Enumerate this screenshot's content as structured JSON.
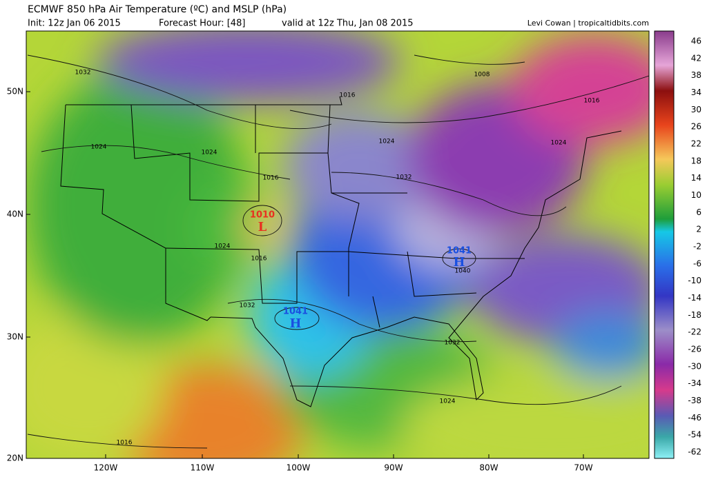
{
  "header": {
    "title": "ECMWF 850 hPa Air Temperature (ºC) and MSLP (hPa)",
    "init": "Init: 12z Jan 06 2015",
    "forecast_hour": "Forecast Hour: [48]",
    "valid": "valid at 12z Thu, Jan 08 2015",
    "credit": "Levi Cowan | tropicaltidbits.com"
  },
  "map": {
    "lat_labels": [
      "50N",
      "40N",
      "30N",
      "20N"
    ],
    "lon_labels": [
      "120W",
      "110W",
      "100W",
      "90W",
      "80W",
      "70W"
    ],
    "isobar_labels": [
      1032,
      1008,
      1016,
      1016,
      1024,
      1024,
      1024,
      1024,
      1016,
      1032,
      1024,
      1016,
      1040,
      1032,
      1032,
      1024,
      1016
    ],
    "pressure_centers": [
      {
        "symbol": "L",
        "value": 1010
      },
      {
        "symbol": "H",
        "value": 1041
      },
      {
        "symbol": "H",
        "value": 1041
      }
    ]
  },
  "colorbar": {
    "labels": [
      46,
      42,
      38,
      34,
      30,
      26,
      22,
      18,
      14,
      10,
      6,
      2,
      -2,
      -6,
      -10,
      -14,
      -18,
      -22,
      -26,
      -30,
      -34,
      -38,
      -46,
      -54,
      -62
    ]
  }
}
